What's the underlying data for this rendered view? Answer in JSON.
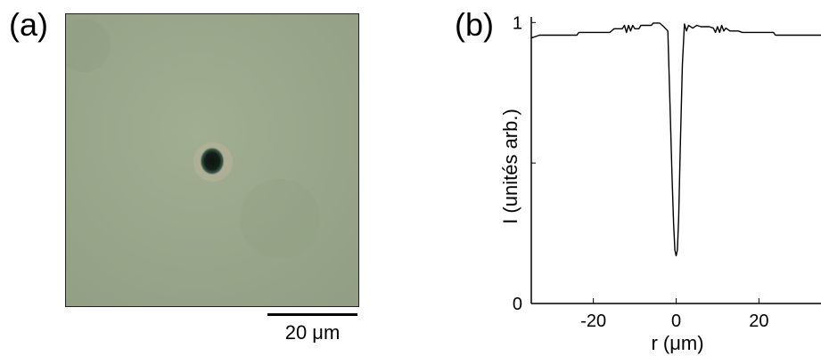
{
  "panels": {
    "a": {
      "label": "(a)"
    },
    "b": {
      "label": "(b)"
    }
  },
  "micrograph": {
    "scale_bar_label": "20 μm",
    "background_color": "#9aa98b",
    "particle_color": "#0d1410"
  },
  "chart_data": {
    "type": "line",
    "xlabel": "r (μm)",
    "ylabel": "I (unités arb.)",
    "xlim": [
      -35,
      35
    ],
    "ylim": [
      0,
      1.02
    ],
    "xticks": [
      -20,
      0,
      20
    ],
    "xtick_labels": [
      "-20",
      "0",
      "20"
    ],
    "yticks": [
      0,
      0.5,
      1
    ],
    "ytick_labels": [
      "0",
      "",
      "1"
    ],
    "grid": false,
    "series": [
      {
        "x": [
          -35,
          -33,
          -32,
          -24,
          -23.5,
          -16,
          -15,
          -13,
          -12.5,
          -12,
          -11.5,
          -11,
          -10.5,
          -10,
          -9,
          -8.5,
          -6,
          -5.5,
          -4,
          -3,
          -2,
          -1.5,
          -1,
          -0.6,
          -0.3,
          0,
          0.3,
          0.6,
          1,
          1.5,
          2,
          2.5,
          3,
          4,
          5,
          6,
          7,
          8,
          9,
          9.5,
          10,
          10.5,
          11,
          11.5,
          12,
          13,
          14,
          15,
          16,
          23.5,
          24,
          30,
          35
        ],
        "y": [
          0.945,
          0.955,
          0.955,
          0.955,
          0.965,
          0.965,
          0.978,
          0.978,
          0.99,
          0.965,
          0.99,
          0.97,
          0.99,
          0.978,
          0.978,
          0.99,
          0.99,
          0.998,
          0.998,
          0.985,
          0.97,
          0.72,
          0.45,
          0.28,
          0.19,
          0.17,
          0.19,
          0.3,
          0.55,
          0.85,
          0.995,
          0.97,
          0.99,
          0.98,
          0.99,
          0.985,
          0.985,
          0.985,
          0.98,
          0.965,
          0.985,
          0.965,
          0.99,
          0.97,
          0.98,
          0.97,
          0.97,
          0.97,
          0.965,
          0.965,
          0.955,
          0.955,
          0.955
        ]
      }
    ]
  }
}
